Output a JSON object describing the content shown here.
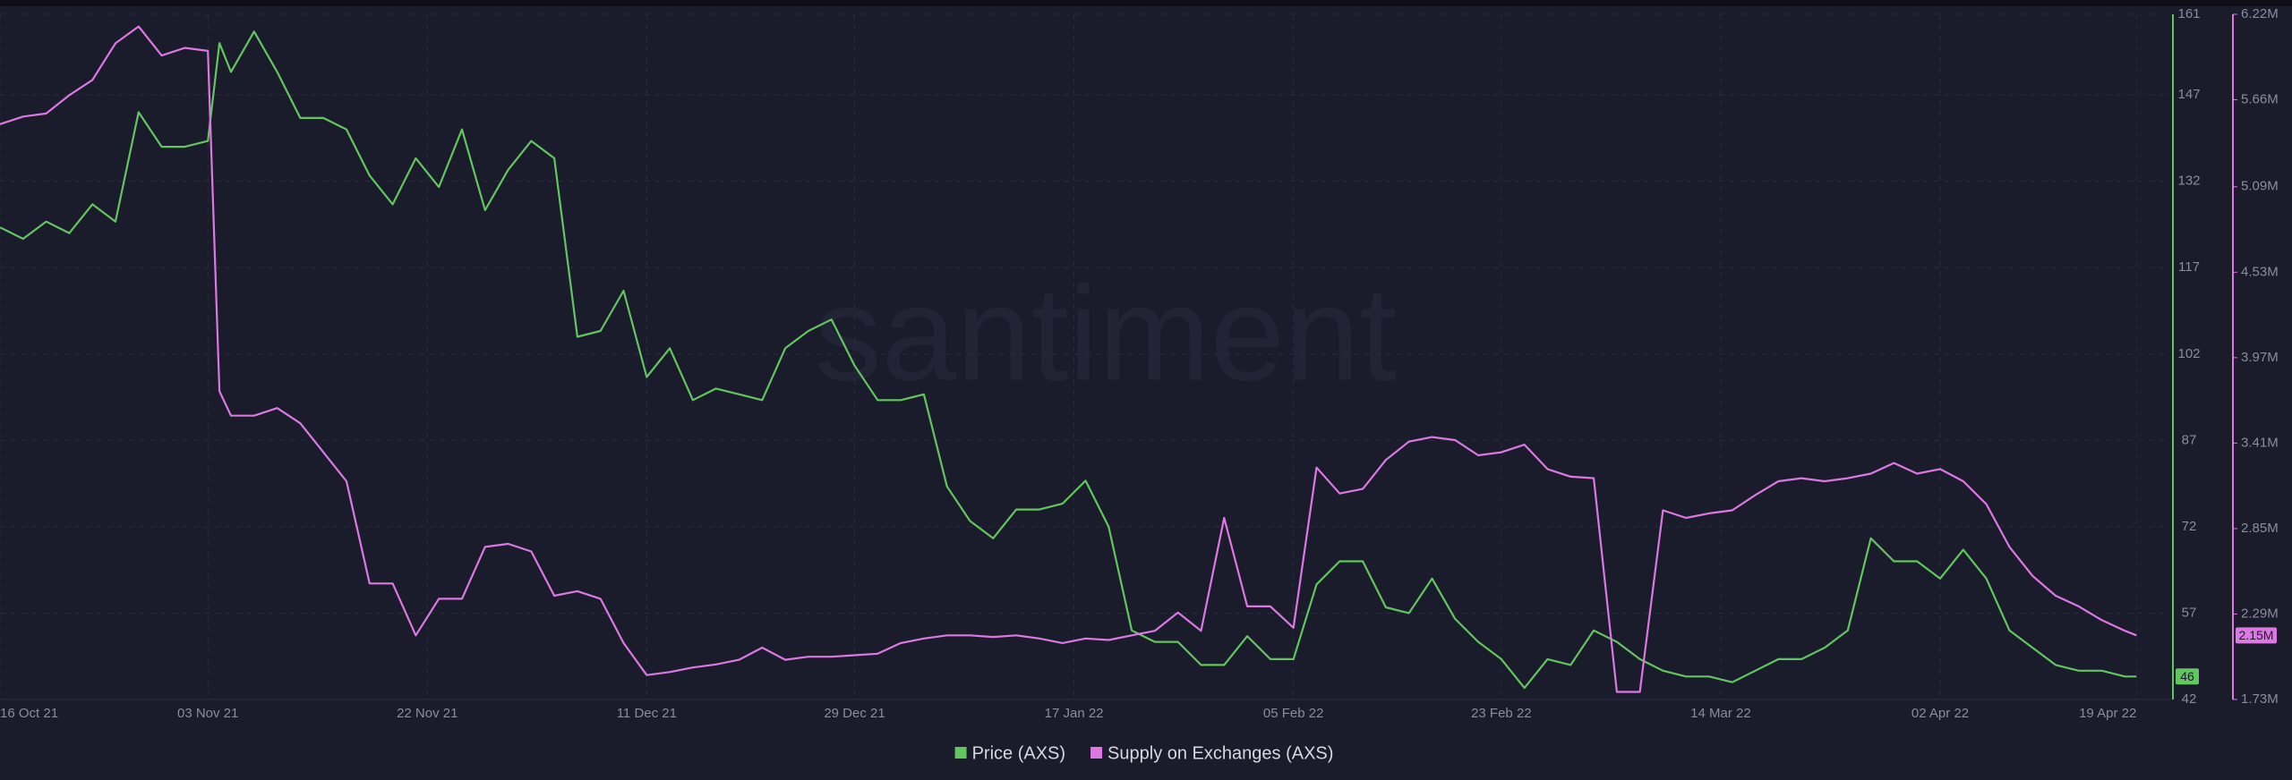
{
  "chart_data": {
    "type": "line",
    "watermark": "santiment",
    "x": [
      "2021-10-16",
      "2021-10-18",
      "2021-10-20",
      "2021-10-22",
      "2021-10-24",
      "2021-10-26",
      "2021-10-28",
      "2021-10-30",
      "2021-11-01",
      "2021-11-03",
      "2021-11-04",
      "2021-11-05",
      "2021-11-07",
      "2021-11-09",
      "2021-11-11",
      "2021-11-13",
      "2021-11-15",
      "2021-11-17",
      "2021-11-19",
      "2021-11-21",
      "2021-11-23",
      "2021-11-25",
      "2021-11-27",
      "2021-11-29",
      "2021-12-01",
      "2021-12-03",
      "2021-12-05",
      "2021-12-07",
      "2021-12-09",
      "2021-12-11",
      "2021-12-13",
      "2021-12-15",
      "2021-12-17",
      "2021-12-19",
      "2021-12-21",
      "2021-12-23",
      "2021-12-25",
      "2021-12-27",
      "2021-12-29",
      "2021-12-31",
      "2022-01-02",
      "2022-01-04",
      "2022-01-06",
      "2022-01-08",
      "2022-01-10",
      "2022-01-12",
      "2022-01-14",
      "2022-01-16",
      "2022-01-18",
      "2022-01-20",
      "2022-01-22",
      "2022-01-24",
      "2022-01-26",
      "2022-01-28",
      "2022-01-30",
      "2022-02-01",
      "2022-02-03",
      "2022-02-05",
      "2022-02-07",
      "2022-02-09",
      "2022-02-11",
      "2022-02-13",
      "2022-02-15",
      "2022-02-17",
      "2022-02-19",
      "2022-02-21",
      "2022-02-23",
      "2022-02-25",
      "2022-02-27",
      "2022-03-01",
      "2022-03-03",
      "2022-03-05",
      "2022-03-07",
      "2022-03-09",
      "2022-03-11",
      "2022-03-13",
      "2022-03-15",
      "2022-03-17",
      "2022-03-19",
      "2022-03-21",
      "2022-03-23",
      "2022-03-25",
      "2022-03-27",
      "2022-03-29",
      "2022-03-31",
      "2022-04-02",
      "2022-04-04",
      "2022-04-06",
      "2022-04-08",
      "2022-04-10",
      "2022-04-12",
      "2022-04-14",
      "2022-04-16",
      "2022-04-18",
      "2022-04-19"
    ],
    "xlim": [
      "2021-10-16",
      "2022-04-22"
    ],
    "xticks": [
      {
        "value": "2021-10-16",
        "label": "16 Oct 21"
      },
      {
        "value": "2021-11-03",
        "label": "03 Nov 21"
      },
      {
        "value": "2021-11-22",
        "label": "22 Nov 21"
      },
      {
        "value": "2021-12-11",
        "label": "11 Dec 21"
      },
      {
        "value": "2021-12-29",
        "label": "29 Dec 21"
      },
      {
        "value": "2022-01-17",
        "label": "17 Jan 22"
      },
      {
        "value": "2022-02-05",
        "label": "05 Feb 22"
      },
      {
        "value": "2022-02-23",
        "label": "23 Feb 22"
      },
      {
        "value": "2022-03-14",
        "label": "14 Mar 22"
      },
      {
        "value": "2022-04-02",
        "label": "02 Apr 22"
      },
      {
        "value": "2022-04-19",
        "label": "19 Apr 22"
      }
    ],
    "ylim": [
      42,
      161
    ],
    "yticks": [
      42,
      57,
      72,
      87,
      102,
      117,
      132,
      147,
      161
    ],
    "y2lim": [
      1730000,
      6220000
    ],
    "y2ticks": [
      {
        "value": 1730000,
        "label": "1.73M"
      },
      {
        "value": 2290000,
        "label": "2.29M"
      },
      {
        "value": 2850000,
        "label": "2.85M"
      },
      {
        "value": 3410000,
        "label": "3.41M"
      },
      {
        "value": 3970000,
        "label": "3.97M"
      },
      {
        "value": 4530000,
        "label": "4.53M"
      },
      {
        "value": 5090000,
        "label": "5.09M"
      },
      {
        "value": 5660000,
        "label": "5.66M"
      },
      {
        "value": 6220000,
        "label": "6.22M"
      }
    ],
    "grid": true,
    "legend": "bottom",
    "series": [
      {
        "name": "Price (AXS)",
        "color": "#62c65e",
        "axis": "y",
        "last_label": "46",
        "values": [
          124,
          122,
          125,
          123,
          128,
          125,
          144,
          138,
          138,
          139,
          156,
          151,
          158,
          151,
          143,
          143,
          141,
          133,
          128,
          136,
          131,
          141,
          127,
          134,
          139,
          136,
          105,
          106,
          113,
          98,
          103,
          94,
          96,
          95,
          94,
          103,
          106,
          108,
          100,
          94,
          94,
          95,
          79,
          73,
          70,
          75,
          75,
          76,
          80,
          72,
          54,
          52,
          52,
          48,
          48,
          53,
          49,
          49,
          62,
          66,
          66,
          58,
          57,
          63,
          56,
          52,
          49,
          44,
          49,
          48,
          54,
          52,
          49,
          47,
          46,
          46,
          45,
          47,
          49,
          49,
          51,
          54,
          70,
          66,
          66,
          63,
          68,
          63,
          54,
          51,
          48,
          47,
          47,
          46,
          46
        ]
      },
      {
        "name": "Supply on Exchanges (AXS)",
        "color": "#dc78e2",
        "axis": "y2",
        "last_label": "2.15M",
        "values": [
          5500000,
          5550000,
          5570000,
          5690000,
          5790000,
          6030000,
          6140000,
          5950000,
          6000000,
          5980000,
          3750000,
          3590000,
          3590000,
          3640000,
          3540000,
          3350000,
          3160000,
          2490000,
          2490000,
          2150000,
          2390000,
          2390000,
          2730000,
          2750000,
          2700000,
          2410000,
          2440000,
          2390000,
          2100000,
          1890000,
          1910000,
          1940000,
          1960000,
          1990000,
          2070000,
          1990000,
          2010000,
          2010000,
          2020000,
          2030000,
          2100000,
          2130000,
          2150000,
          2150000,
          2140000,
          2150000,
          2130000,
          2100000,
          2130000,
          2120000,
          2150000,
          2180000,
          2300000,
          2180000,
          2920000,
          2340000,
          2340000,
          2200000,
          3250000,
          3080000,
          3110000,
          3300000,
          3420000,
          3450000,
          3430000,
          3330000,
          3350000,
          3400000,
          3240000,
          3190000,
          3180000,
          1780000,
          1780000,
          2970000,
          2920000,
          2950000,
          2970000,
          3070000,
          3160000,
          3180000,
          3160000,
          3180000,
          3210000,
          3280000,
          3210000,
          3240000,
          3160000,
          3010000,
          2730000,
          2540000,
          2410000,
          2340000,
          2250000,
          2180000,
          2150000
        ]
      }
    ]
  }
}
